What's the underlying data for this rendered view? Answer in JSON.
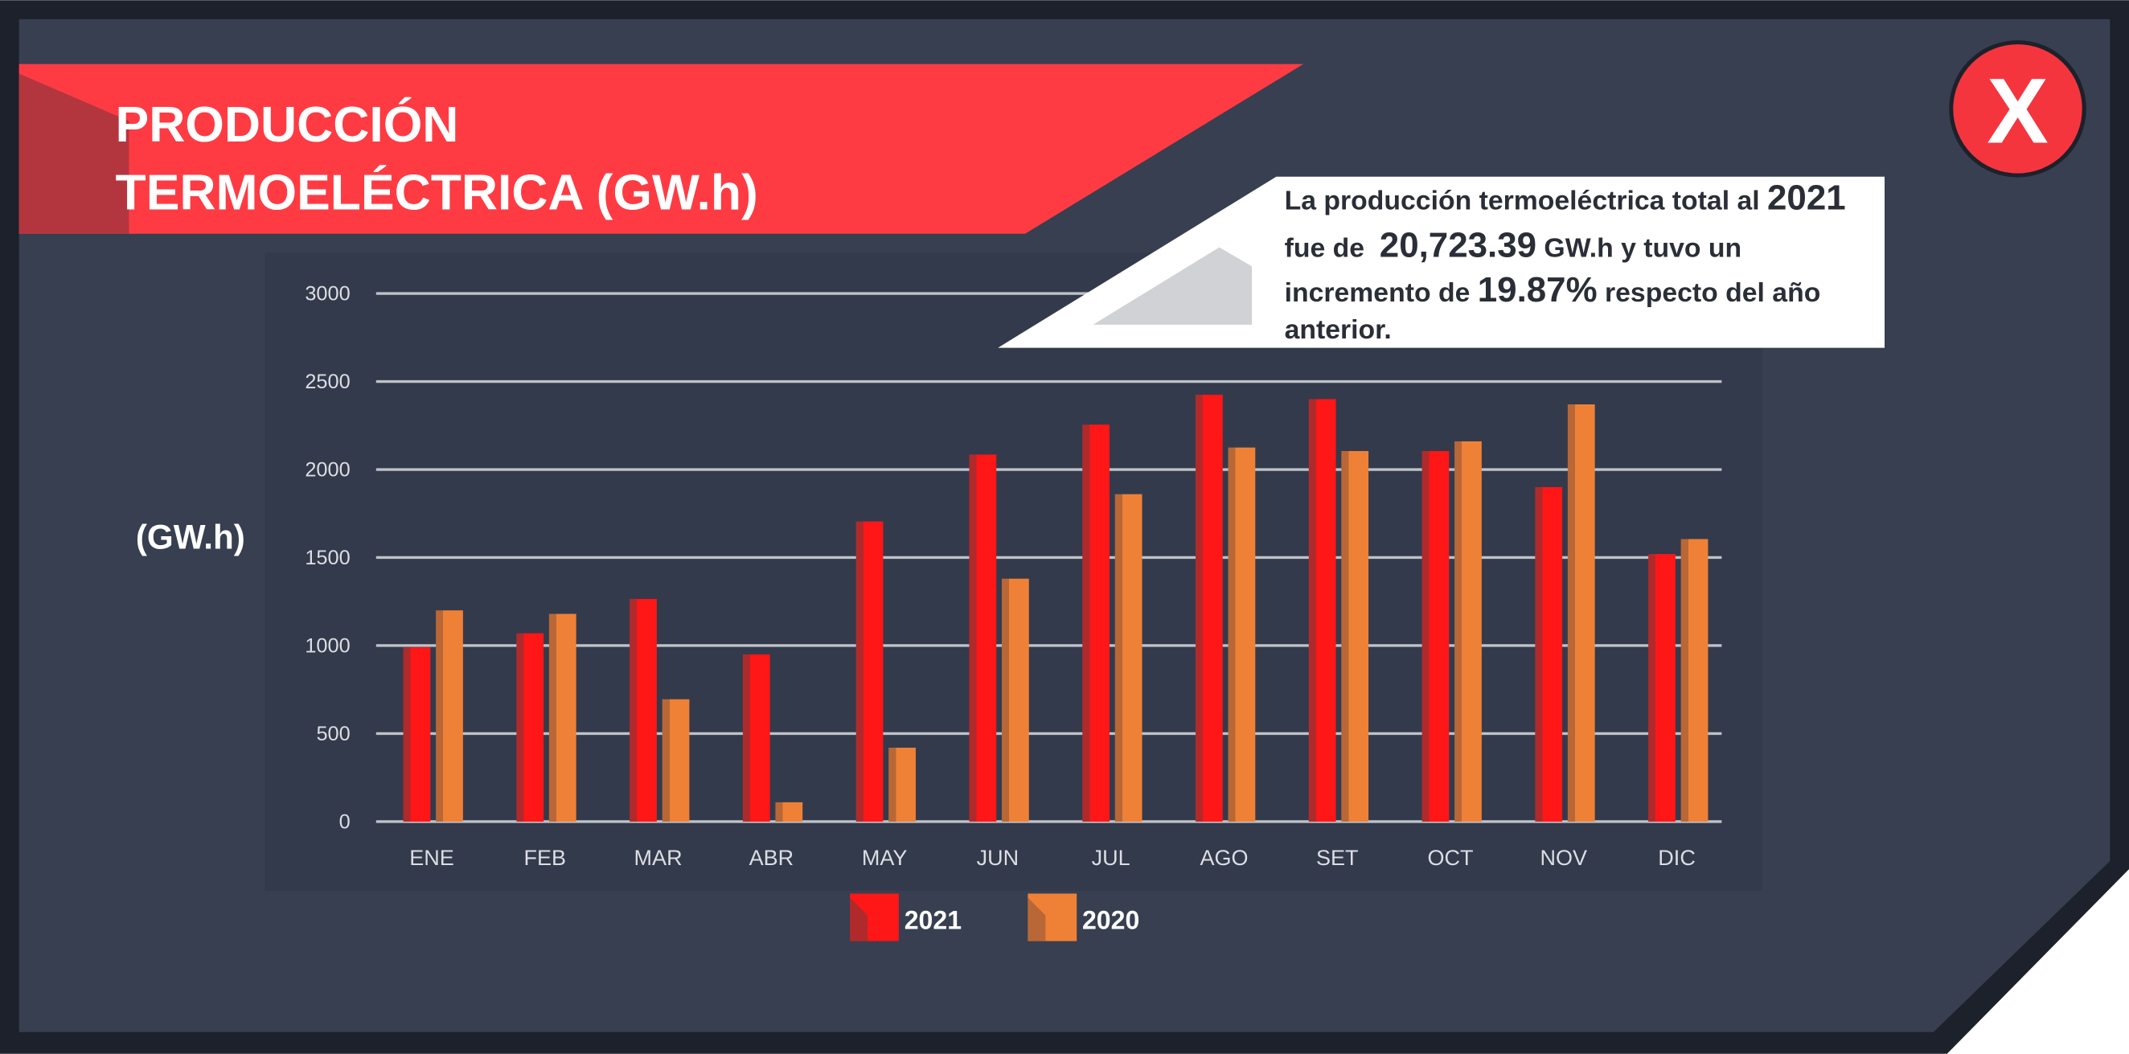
{
  "colors": {
    "frame": "#1c212b",
    "panel": "#373f51",
    "chart_area": "#333a4b",
    "banner": "#fe3b43",
    "banner_accent": "#b3363f",
    "callout": "#ffffff",
    "callout_decoration": "#d1d2d6",
    "close_button": "#f5353e"
  },
  "close_button": {
    "icon": "close-icon",
    "glyph": "X"
  },
  "callout": {
    "line1": {
      "pre": "La producción termoeléctrica total al ",
      "highlight": "2021"
    },
    "line2": {
      "pre": "fue de  ",
      "highlight": "20,723.39",
      "post": " GW.h y tuvo un"
    },
    "line3": {
      "pre": "incremento de ",
      "highlight": "19.87%",
      "post": " respecto del año"
    },
    "line4": "anterior."
  },
  "chart_data": {
    "type": "bar",
    "title_lines": [
      "PRODUCCIÓN",
      "TERMOELÉCTRICA (GW.h)"
    ],
    "ylabel": "(GW.h)",
    "categories": [
      "ENE",
      "FEB",
      "MAR",
      "ABR",
      "MAY",
      "JUN",
      "JUL",
      "AGO",
      "SET",
      "OCT",
      "NOV",
      "DIC"
    ],
    "series": [
      {
        "name": "2021",
        "color": "#ff1616",
        "shade": "#b02a2c",
        "values": [
          990,
          1070,
          1265,
          950,
          1705,
          2085,
          2255,
          2425,
          2400,
          2105,
          1900,
          1520
        ]
      },
      {
        "name": "2020",
        "color": "#ef8136",
        "shade": "#b96736",
        "values": [
          1200,
          1180,
          695,
          110,
          420,
          1380,
          1860,
          2125,
          2105,
          2160,
          2370,
          1605
        ]
      }
    ],
    "ylim": [
      0,
      3000
    ],
    "yticks": [
      0,
      500,
      1000,
      1500,
      2000,
      2500,
      3000
    ],
    "grid": true,
    "legend": "bottom"
  }
}
